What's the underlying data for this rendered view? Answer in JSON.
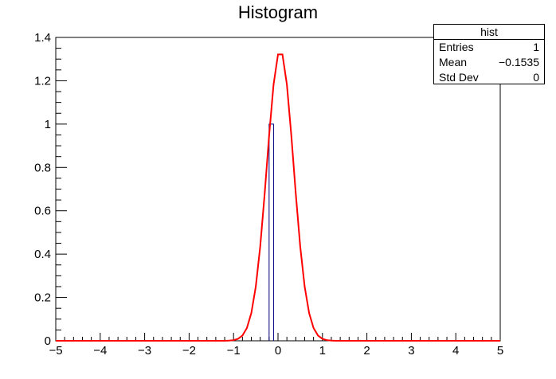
{
  "chart_data": {
    "type": "histogram",
    "title": "Histogram",
    "xlim": [
      -5,
      5
    ],
    "ylim": [
      0,
      1.4
    ],
    "x_ticks": [
      "−5",
      "−4",
      "−3",
      "−2",
      "−1",
      "0",
      "1",
      "2",
      "3",
      "4",
      "5"
    ],
    "y_ticks": [
      "0",
      "0.2",
      "0.4",
      "0.6",
      "0.8",
      "1",
      "1.2",
      "1.4"
    ],
    "bins": {
      "count": 100,
      "min": -5,
      "max": 5
    },
    "histogram_entries": [
      {
        "bin_low": -0.2,
        "bin_high": -0.1,
        "count": 1
      }
    ],
    "fit_curve": {
      "color": "#ff0000",
      "shape": "gaussian",
      "peak_x": 0.05,
      "peak_y": 1.34,
      "sigma": 0.3
    },
    "colors": {
      "histogram_line": "#000080",
      "axis": "#000000"
    }
  },
  "stats": {
    "title": "hist",
    "rows": [
      {
        "label": "Entries",
        "value": "1"
      },
      {
        "label": "Mean",
        "value": "−0.1535"
      },
      {
        "label": "Std Dev",
        "value": "0"
      }
    ]
  }
}
